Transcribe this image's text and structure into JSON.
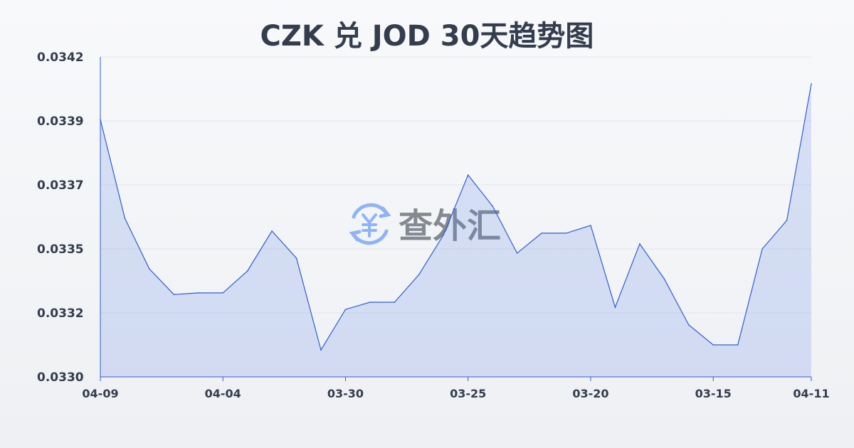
{
  "chart_data": {
    "type": "area",
    "title": "CZK 兑 JOD 30天趋势图",
    "xlabel": "",
    "ylabel": "",
    "ylim": [
      0.033,
      0.0342
    ],
    "y_ticks": [
      0.033,
      0.03324,
      0.03348,
      0.03372,
      0.03396,
      0.0342
    ],
    "y_tick_labels": [
      "0.0330",
      "0.0332",
      "0.0335",
      "0.0337",
      "0.0339",
      "0.0342"
    ],
    "x_tick_labels": [
      {
        "index": 0,
        "label": "04-09"
      },
      {
        "index": 5,
        "label": "04-04"
      },
      {
        "index": 10,
        "label": "03-30"
      },
      {
        "index": 15,
        "label": "03-25"
      },
      {
        "index": 20,
        "label": "03-20"
      },
      {
        "index": 25,
        "label": "03-15"
      },
      {
        "index": 29,
        "label": "04-11"
      }
    ],
    "values": [
      0.033965,
      0.033595,
      0.033405,
      0.033309,
      0.033315,
      0.033315,
      0.033397,
      0.033547,
      0.033445,
      0.033101,
      0.033253,
      0.03328,
      0.03328,
      0.033384,
      0.033533,
      0.033757,
      0.03364,
      0.033464,
      0.033539,
      0.033539,
      0.033568,
      0.033261,
      0.033499,
      0.033368,
      0.033195,
      0.03312,
      0.03312,
      0.03348,
      0.033587,
      0.034099
    ],
    "grid": true,
    "line_color": "#2f5fcf",
    "fill_color": "#5a82e6"
  },
  "watermark": {
    "text": "查外汇",
    "icon": "yen-exchange-icon",
    "icon_color": "#8fb4f5"
  }
}
